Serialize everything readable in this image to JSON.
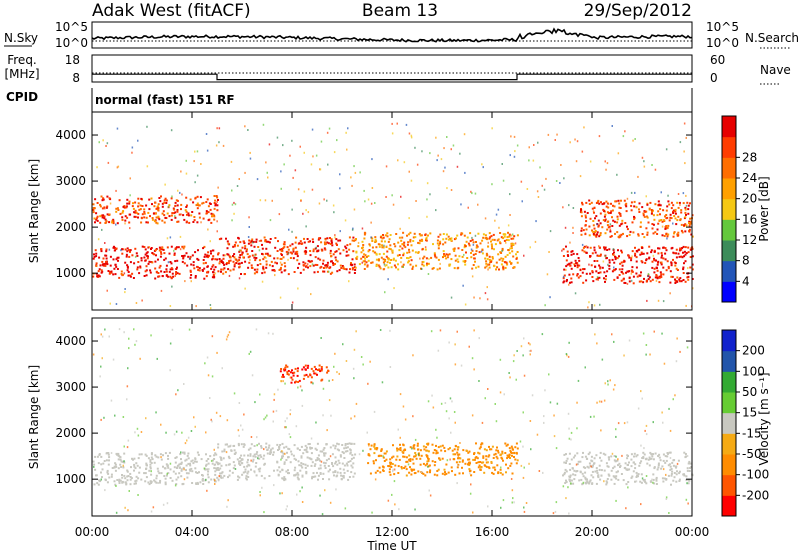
{
  "header": {
    "station": "Adak West (fitACF)",
    "beam": "Beam 13",
    "date": "29/Sep/2012"
  },
  "strip_labels": {
    "nsky": "N.Sky",
    "freq_top": "Freq.",
    "freq_unit": "[MHz]",
    "cpid": "CPID",
    "nsearch": "N.Search",
    "nave": "Nave",
    "cpid_text": "normal (fast) 151 RF"
  },
  "strip_ticks": {
    "noise_left": [
      "10^5",
      "10^0"
    ],
    "noise_right": [
      "10^5",
      "10^0"
    ],
    "freq_left": [
      "18",
      "8"
    ],
    "freq_right": [
      "60",
      "0"
    ]
  },
  "colors": {
    "power": [
      "#0000ff",
      "#2255b8",
      "#3c8c5a",
      "#64c83c",
      "#f5c814",
      "#ffa000",
      "#ff6e00",
      "#ff3c00",
      "#e60000"
    ],
    "velocity": [
      "#ff0000",
      "#ff5500",
      "#ff8c00",
      "#f5aa14",
      "#c8c8c0",
      "#66cc33",
      "#33aa33",
      "#2255aa",
      "#1122cc"
    ]
  },
  "colorbars": {
    "power_title": "Power [dB]",
    "power_ticks": [
      "4",
      "8",
      "12",
      "16",
      "20",
      "24",
      "28"
    ],
    "velocity_title": "Velocity [m s⁻¹]",
    "velocity_ticks": [
      "-200",
      "-100",
      "-50",
      "-15",
      "15",
      "50",
      "100",
      "200"
    ]
  },
  "chart_data": {
    "type": "heatmap",
    "panels": [
      {
        "name": "power",
        "ylabel": "Slant Range [km]",
        "ylim": [
          200,
          4500
        ],
        "yticks": [
          1000,
          2000,
          3000,
          4000
        ],
        "colorbar_label": "Power [dB]",
        "colorbar_ticks": [
          4,
          8,
          12,
          16,
          20,
          24,
          28
        ],
        "features": [
          {
            "t_start": 0,
            "t_end": 5,
            "range_start": 900,
            "range_end": 1600,
            "value": 28
          },
          {
            "t_start": 5,
            "t_end": 10.5,
            "range_start": 1000,
            "range_end": 1800,
            "value": 26
          },
          {
            "t_start": 0,
            "t_end": 5,
            "range_start": 2100,
            "range_end": 2700,
            "value": 24
          },
          {
            "t_start": 10.5,
            "t_end": 17,
            "range_start": 1100,
            "range_end": 1900,
            "value": 20
          },
          {
            "t_start": 18.8,
            "t_end": 24,
            "range_start": 800,
            "range_end": 1600,
            "value": 28
          },
          {
            "t_start": 19.5,
            "t_end": 24,
            "range_start": 1800,
            "range_end": 2600,
            "value": 24
          }
        ]
      },
      {
        "name": "velocity",
        "ylabel": "Slant Range [km]",
        "ylim": [
          200,
          4500
        ],
        "yticks": [
          1000,
          2000,
          3000,
          4000
        ],
        "colorbar_label": "Velocity [m s⁻¹]",
        "colorbar_ticks": [
          -200,
          -100,
          -50,
          -15,
          15,
          50,
          100,
          200
        ],
        "features": [
          {
            "t_start": 0,
            "t_end": 5,
            "range_start": 900,
            "range_end": 1600,
            "value": 0
          },
          {
            "t_start": 5,
            "t_end": 10.5,
            "range_start": 1000,
            "range_end": 1800,
            "value": 0
          },
          {
            "t_start": 11,
            "t_end": 17,
            "range_start": 1100,
            "range_end": 1800,
            "value": -40
          },
          {
            "t_start": 7.5,
            "t_end": 9.5,
            "range_start": 3100,
            "range_end": 3500,
            "value": -150
          },
          {
            "t_start": 18.8,
            "t_end": 24,
            "range_start": 900,
            "range_end": 1600,
            "value": 0
          }
        ]
      }
    ],
    "xlabel": "Time UT",
    "xticks": [
      "00:00",
      "04:00",
      "08:00",
      "12:00",
      "16:00",
      "20:00",
      "00:00"
    ],
    "xlim": [
      0,
      24
    ],
    "frequency_steps": [
      {
        "t_start": 0,
        "t_end": 5,
        "freq_mhz": 12
      },
      {
        "t_start": 5,
        "t_end": 17,
        "freq_mhz": 10
      },
      {
        "t_start": 17,
        "t_end": 24,
        "freq_mhz": 12
      }
    ]
  }
}
